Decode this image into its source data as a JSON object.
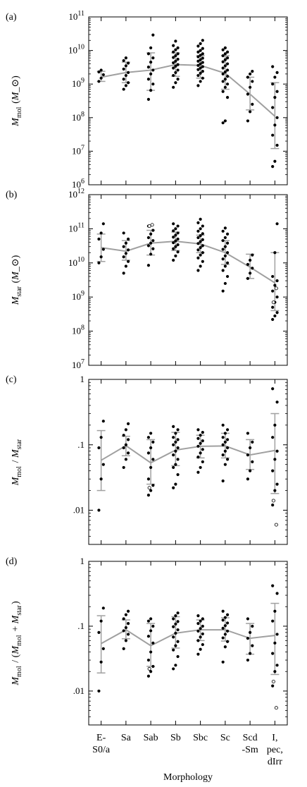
{
  "categories": [
    "E-\nS0/a",
    "Sa",
    "Sab",
    "Sb",
    "Sbc",
    "Sc",
    "Scd\n-Sm",
    "I,\npec,\ndIrr"
  ],
  "xlabel": "Morphology",
  "colors": {
    "points": "#000000",
    "median": "#a0a0a0",
    "axis": "#000000"
  },
  "chart_data": [
    {
      "type": "scatter",
      "panel_label": "(a)",
      "ylabel": "M_mol (M_⊙)",
      "yscale": "log",
      "ylim": [
        1000000.0,
        100000000000.0
      ],
      "ytick_labels": [
        "10^6",
        "10^7",
        "10^8",
        "10^9",
        "10^10",
        "10^11"
      ],
      "median": [
        1600000000.0,
        2200000000.0,
        2600000000.0,
        3800000000.0,
        3600000000.0,
        2100000000.0,
        500000000.0,
        110000000.0
      ],
      "err_low": [
        1200000000.0,
        1100000000.0,
        650000000.0,
        1700000000.0,
        1500000000.0,
        700000000.0,
        170000000.0,
        12000000.0
      ],
      "err_high": [
        2400000000.0,
        4500000000.0,
        8500000000.0,
        8500000000.0,
        7000000000.0,
        7000000000.0,
        1600000000.0,
        1100000000.0
      ],
      "points": [
        [
          1200000000.0,
          1500000000.0,
          1900000000.0,
          2300000000.0,
          2600000000.0
        ],
        [
          700000000.0,
          900000000.0,
          1100000000.0,
          1400000000.0,
          1800000000.0,
          2200000000.0,
          2800000000.0,
          3500000000.0,
          4200000000.0,
          5000000000.0,
          6000000000.0
        ],
        [
          350000000.0,
          650000000.0,
          1000000000.0,
          1400000000.0,
          2000000000.0,
          2600000000.0,
          3200000000.0,
          4500000000.0,
          6000000000.0,
          8000000000.0,
          12000000000.0,
          29000000000.0
        ],
        [
          800000000.0,
          1100000000.0,
          1400000000.0,
          1800000000.0,
          2200000000.0,
          2600000000.0,
          3000000000.0,
          3400000000.0,
          3800000000.0,
          4300000000.0,
          4800000000.0,
          5500000000.0,
          6200000000.0,
          7000000000.0,
          8000000000.0,
          9000000000.0,
          10500000000.0,
          12000000000.0,
          14000000000.0,
          19000000000.0
        ],
        [
          900000000.0,
          1200000000.0,
          1500000000.0,
          1800000000.0,
          2100000000.0,
          2400000000.0,
          2700000000.0,
          3000000000.0,
          3300000000.0,
          3600000000.0,
          4000000000.0,
          4400000000.0,
          4800000000.0,
          5300000000.0,
          5900000000.0,
          6500000000.0,
          7200000000.0,
          8000000000.0,
          9000000000.0,
          10000000000.0,
          11500000000.0,
          13500000000.0,
          16000000000.0,
          20000000000.0
        ],
        [
          70000000.0,
          80000000.0,
          400000000.0,
          600000000.0,
          800000000.0,
          1000000000.0,
          1200000000.0,
          1400000000.0,
          1700000000.0,
          2000000000.0,
          2300000000.0,
          2600000000.0,
          3000000000.0,
          3500000000.0,
          4000000000.0,
          4600000000.0,
          5300000000.0,
          6000000000.0,
          7000000000.0,
          8000000000.0,
          9000000000.0,
          10500000000.0,
          12000000000.0
        ],
        [
          80000000.0,
          150000000.0,
          250000000.0,
          500000000.0,
          800000000.0,
          1200000000.0,
          1600000000.0,
          2000000000.0,
          2400000000.0
        ],
        [
          3500000.0,
          5000000.0,
          15000000.0,
          30000000.0,
          60000000.0,
          100000000.0,
          200000000.0,
          400000000.0,
          600000000.0,
          1000000000.0,
          1600000000.0,
          2200000000.0,
          3300000000.0
        ]
      ],
      "open_points": [
        [],
        [],
        [],
        [],
        [],
        [],
        [],
        []
      ]
    },
    {
      "type": "scatter",
      "panel_label": "(b)",
      "ylabel": "M_star (M_⊙)",
      "yscale": "log",
      "ylim": [
        10000000.0,
        1000000000000.0
      ],
      "ytick_labels": [
        "10^7",
        "10^8",
        "10^9",
        "10^10",
        "10^11",
        "10^12"
      ],
      "median": [
        28000000000.0,
        22000000000.0,
        38000000000.0,
        43000000000.0,
        36000000000.0,
        20000000000.0,
        7500000000.0,
        2600000000.0
      ],
      "err_low": [
        11000000000.0,
        12000000000.0,
        17000000000.0,
        23000000000.0,
        20000000000.0,
        9000000000.0,
        3500000000.0,
        400000000.0
      ],
      "err_high": [
        70000000000.0,
        45000000000.0,
        90000000000.0,
        80000000000.0,
        65000000000.0,
        45000000000.0,
        18000000000.0,
        20000000000.0
      ],
      "points": [
        [
          10000000000.0,
          15000000000.0,
          25000000000.0,
          50000000000.0,
          75000000000.0,
          140000000000.0
        ],
        [
          5000000000.0,
          8000000000.0,
          11000000000.0,
          15000000000.0,
          19000000000.0,
          24000000000.0,
          30000000000.0,
          38000000000.0,
          50000000000.0,
          75000000000.0
        ],
        [
          8500000000.0,
          18000000000.0,
          26000000000.0,
          32000000000.0,
          38000000000.0,
          45000000000.0,
          55000000000.0,
          70000000000.0,
          90000000000.0,
          120000000000.0
        ],
        [
          12000000000.0,
          16000000000.0,
          21000000000.0,
          26000000000.0,
          30000000000.0,
          34000000000.0,
          39000000000.0,
          44000000000.0,
          50000000000.0,
          57000000000.0,
          65000000000.0,
          75000000000.0,
          87000000000.0,
          100000000000.0,
          120000000000.0,
          140000000000.0
        ],
        [
          6000000000.0,
          8000000000.0,
          11000000000.0,
          14000000000.0,
          17000000000.0,
          20000000000.0,
          24000000000.0,
          28000000000.0,
          32000000000.0,
          37000000000.0,
          42000000000.0,
          48000000000.0,
          55000000000.0,
          63000000000.0,
          72000000000.0,
          85000000000.0,
          100000000000.0,
          120000000000.0,
          150000000000.0,
          190000000000.0
        ],
        [
          1500000000.0,
          2500000000.0,
          4000000000.0,
          6000000000.0,
          8000000000.0,
          10000000000.0,
          13000000000.0,
          16000000000.0,
          20000000000.0,
          25000000000.0,
          30000000000.0,
          38000000000.0,
          45000000000.0,
          55000000000.0,
          70000000000.0,
          85000000000.0,
          105000000000.0
        ],
        [
          3500000000.0,
          5000000000.0,
          7000000000.0,
          9000000000.0,
          12000000000.0,
          17000000000.0
        ],
        [
          220000000.0,
          280000000.0,
          350000000.0,
          500000000.0,
          700000000.0,
          1000000000.0,
          1500000000.0,
          2200000000.0,
          3000000000.0,
          4000000000.0,
          20000000000.0,
          140000000000.0
        ]
      ],
      "open_points": [
        [],
        [],
        [
          120000000000.0,
          130000000000.0
        ],
        [],
        [],
        [],
        [],
        [
          700000000.0,
          1800000000.0
        ]
      ]
    },
    {
      "type": "scatter",
      "panel_label": "(c)",
      "ylabel": "M_mol / M_star",
      "yscale": "log",
      "ylim": [
        0.003,
        1
      ],
      "ytick_values": [
        0.01,
        0.1,
        1
      ],
      "ytick_labels": [
        ".01",
        ".1",
        "1"
      ],
      "median": [
        0.058,
        0.097,
        0.053,
        0.083,
        0.095,
        0.096,
        0.07,
        0.082
      ],
      "err_low": [
        0.02,
        0.068,
        0.025,
        0.048,
        0.063,
        0.063,
        0.042,
        0.018
      ],
      "err_high": [
        0.165,
        0.135,
        0.12,
        0.155,
        0.14,
        0.15,
        0.12,
        0.3
      ],
      "points": [
        [
          0.01,
          0.03,
          0.05,
          0.09,
          0.13,
          0.23
        ],
        [
          0.045,
          0.06,
          0.075,
          0.09,
          0.1,
          0.12,
          0.14,
          0.17,
          0.21
        ],
        [
          0.017,
          0.02,
          0.024,
          0.03,
          0.045,
          0.06,
          0.075,
          0.09,
          0.11,
          0.13,
          0.15
        ],
        [
          0.022,
          0.025,
          0.035,
          0.045,
          0.05,
          0.06,
          0.07,
          0.08,
          0.09,
          0.1,
          0.11,
          0.12,
          0.13,
          0.15,
          0.17,
          0.19
        ],
        [
          0.038,
          0.045,
          0.055,
          0.065,
          0.075,
          0.085,
          0.095,
          0.105,
          0.115,
          0.125,
          0.14,
          0.155,
          0.17
        ],
        [
          0.028,
          0.05,
          0.06,
          0.07,
          0.08,
          0.09,
          0.1,
          0.11,
          0.12,
          0.13,
          0.15,
          0.17,
          0.2
        ],
        [
          0.03,
          0.04,
          0.055,
          0.07,
          0.09,
          0.11,
          0.15
        ],
        [
          0.012,
          0.02,
          0.025,
          0.04,
          0.06,
          0.08,
          0.13,
          0.2,
          0.45,
          0.72
        ]
      ],
      "open_points": [
        [],
        [],
        [
          0.022
        ],
        [],
        [],
        [],
        [],
        [
          0.014,
          0.006
        ]
      ]
    },
    {
      "type": "scatter",
      "panel_label": "(d)",
      "ylabel": "M_mol / (M_mol + M_star)",
      "yscale": "log",
      "ylim": [
        0.003,
        1
      ],
      "ytick_values": [
        0.01,
        0.1,
        1
      ],
      "ytick_labels": [
        ".01",
        ".1",
        "1"
      ],
      "median": [
        0.054,
        0.088,
        0.05,
        0.078,
        0.088,
        0.088,
        0.065,
        0.072
      ],
      "err_low": [
        0.019,
        0.064,
        0.024,
        0.046,
        0.06,
        0.059,
        0.037,
        0.018
      ],
      "err_high": [
        0.145,
        0.125,
        0.11,
        0.14,
        0.125,
        0.135,
        0.11,
        0.225
      ],
      "points": [
        [
          0.01,
          0.028,
          0.045,
          0.08,
          0.12,
          0.19
        ],
        [
          0.045,
          0.06,
          0.075,
          0.085,
          0.095,
          0.11,
          0.13,
          0.15,
          0.17
        ],
        [
          0.017,
          0.02,
          0.024,
          0.03,
          0.04,
          0.055,
          0.07,
          0.085,
          0.1,
          0.12,
          0.13
        ],
        [
          0.022,
          0.025,
          0.034,
          0.043,
          0.05,
          0.058,
          0.068,
          0.078,
          0.088,
          0.098,
          0.108,
          0.118,
          0.13,
          0.145,
          0.16
        ],
        [
          0.037,
          0.044,
          0.052,
          0.06,
          0.068,
          0.076,
          0.084,
          0.092,
          0.1,
          0.11,
          0.12,
          0.13,
          0.145
        ],
        [
          0.028,
          0.048,
          0.058,
          0.066,
          0.075,
          0.084,
          0.093,
          0.102,
          0.112,
          0.124,
          0.136,
          0.15,
          0.17
        ],
        [
          0.03,
          0.038,
          0.05,
          0.065,
          0.08,
          0.1,
          0.13
        ],
        [
          0.012,
          0.02,
          0.025,
          0.038,
          0.055,
          0.075,
          0.12,
          0.17,
          0.32,
          0.42
        ]
      ],
      "open_points": [
        [],
        [],
        [
          0.022
        ],
        [],
        [],
        [],
        [],
        [
          0.014,
          0.0055
        ]
      ]
    }
  ]
}
